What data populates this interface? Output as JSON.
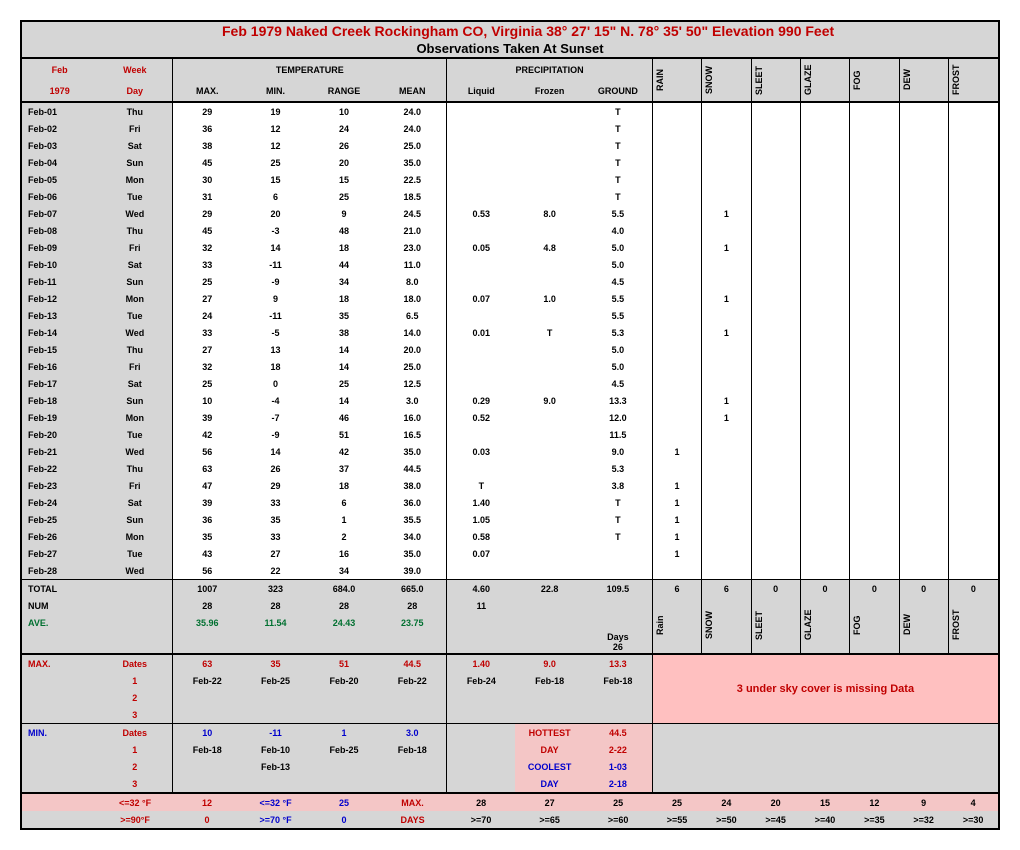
{
  "title": "Feb       1979          Naked Creek Rockingham CO, Virginia   38° 27' 15\" N. 78° 35'  50\" Elevation 990 Feet",
  "subtitle": "Observations  Taken At Sunset",
  "header": {
    "month": "Feb",
    "week": "Week",
    "year": "1979",
    "day": "Day",
    "tempTitle": "TEMPERATURE",
    "precipTitle": "PRECIPITATION",
    "max": "MAX.",
    "min": "MIN.",
    "range": "RANGE",
    "mean": "MEAN",
    "liquid": "Liquid",
    "frozen": "Frozen",
    "ground": "GROUND",
    "cols": [
      "RAIN",
      "SNOW",
      "SLEET",
      "GLAZE",
      "FOG",
      "DEW",
      "FROST"
    ]
  },
  "rows": [
    {
      "d": "Feb-01",
      "w": "Thu",
      "max": "29",
      "min": "19",
      "rng": "10",
      "mean": "24.0",
      "liq": "",
      "frz": "",
      "gnd": "T",
      "r": "",
      "s": "",
      "sl": "",
      "g": "",
      "f": "",
      "de": "",
      "fr": ""
    },
    {
      "d": "Feb-02",
      "w": "Fri",
      "max": "36",
      "min": "12",
      "rng": "24",
      "mean": "24.0",
      "liq": "",
      "frz": "",
      "gnd": "T",
      "r": "",
      "s": "",
      "sl": "",
      "g": "",
      "f": "",
      "de": "",
      "fr": ""
    },
    {
      "d": "Feb-03",
      "w": "Sat",
      "max": "38",
      "min": "12",
      "rng": "26",
      "mean": "25.0",
      "liq": "",
      "frz": "",
      "gnd": "T",
      "r": "",
      "s": "",
      "sl": "",
      "g": "",
      "f": "",
      "de": "",
      "fr": ""
    },
    {
      "d": "Feb-04",
      "w": "Sun",
      "max": "45",
      "min": "25",
      "rng": "20",
      "mean": "35.0",
      "liq": "",
      "frz": "",
      "gnd": "T",
      "r": "",
      "s": "",
      "sl": "",
      "g": "",
      "f": "",
      "de": "",
      "fr": ""
    },
    {
      "d": "Feb-05",
      "w": "Mon",
      "max": "30",
      "min": "15",
      "rng": "15",
      "mean": "22.5",
      "liq": "",
      "frz": "",
      "gnd": "T",
      "r": "",
      "s": "",
      "sl": "",
      "g": "",
      "f": "",
      "de": "",
      "fr": ""
    },
    {
      "d": "Feb-06",
      "w": "Tue",
      "max": "31",
      "min": "6",
      "rng": "25",
      "mean": "18.5",
      "liq": "",
      "frz": "",
      "gnd": "T",
      "r": "",
      "s": "",
      "sl": "",
      "g": "",
      "f": "",
      "de": "",
      "fr": ""
    },
    {
      "d": "Feb-07",
      "w": "Wed",
      "max": "29",
      "min": "20",
      "rng": "9",
      "mean": "24.5",
      "liq": "0.53",
      "frz": "8.0",
      "gnd": "5.5",
      "r": "",
      "s": "1",
      "sl": "",
      "g": "",
      "f": "",
      "de": "",
      "fr": ""
    },
    {
      "d": "Feb-08",
      "w": "Thu",
      "max": "45",
      "min": "-3",
      "rng": "48",
      "mean": "21.0",
      "liq": "",
      "frz": "",
      "gnd": "4.0",
      "r": "",
      "s": "",
      "sl": "",
      "g": "",
      "f": "",
      "de": "",
      "fr": ""
    },
    {
      "d": "Feb-09",
      "w": "Fri",
      "max": "32",
      "min": "14",
      "rng": "18",
      "mean": "23.0",
      "liq": "0.05",
      "frz": "4.8",
      "gnd": "5.0",
      "r": "",
      "s": "1",
      "sl": "",
      "g": "",
      "f": "",
      "de": "",
      "fr": ""
    },
    {
      "d": "Feb-10",
      "w": "Sat",
      "max": "33",
      "min": "-11",
      "rng": "44",
      "mean": "11.0",
      "liq": "",
      "frz": "",
      "gnd": "5.0",
      "r": "",
      "s": "",
      "sl": "",
      "g": "",
      "f": "",
      "de": "",
      "fr": ""
    },
    {
      "d": "Feb-11",
      "w": "Sun",
      "max": "25",
      "min": "-9",
      "rng": "34",
      "mean": "8.0",
      "liq": "",
      "frz": "",
      "gnd": "4.5",
      "r": "",
      "s": "",
      "sl": "",
      "g": "",
      "f": "",
      "de": "",
      "fr": ""
    },
    {
      "d": "Feb-12",
      "w": "Mon",
      "max": "27",
      "min": "9",
      "rng": "18",
      "mean": "18.0",
      "liq": "0.07",
      "frz": "1.0",
      "gnd": "5.5",
      "r": "",
      "s": "1",
      "sl": "",
      "g": "",
      "f": "",
      "de": "",
      "fr": ""
    },
    {
      "d": "Feb-13",
      "w": "Tue",
      "max": "24",
      "min": "-11",
      "rng": "35",
      "mean": "6.5",
      "liq": "",
      "frz": "",
      "gnd": "5.5",
      "r": "",
      "s": "",
      "sl": "",
      "g": "",
      "f": "",
      "de": "",
      "fr": ""
    },
    {
      "d": "Feb-14",
      "w": "Wed",
      "max": "33",
      "min": "-5",
      "rng": "38",
      "mean": "14.0",
      "liq": "0.01",
      "frz": "T",
      "gnd": "5.3",
      "r": "",
      "s": "1",
      "sl": "",
      "g": "",
      "f": "",
      "de": "",
      "fr": ""
    },
    {
      "d": "Feb-15",
      "w": "Thu",
      "max": "27",
      "min": "13",
      "rng": "14",
      "mean": "20.0",
      "liq": "",
      "frz": "",
      "gnd": "5.0",
      "r": "",
      "s": "",
      "sl": "",
      "g": "",
      "f": "",
      "de": "",
      "fr": ""
    },
    {
      "d": "Feb-16",
      "w": "Fri",
      "max": "32",
      "min": "18",
      "rng": "14",
      "mean": "25.0",
      "liq": "",
      "frz": "",
      "gnd": "5.0",
      "r": "",
      "s": "",
      "sl": "",
      "g": "",
      "f": "",
      "de": "",
      "fr": ""
    },
    {
      "d": "Feb-17",
      "w": "Sat",
      "max": "25",
      "min": "0",
      "rng": "25",
      "mean": "12.5",
      "liq": "",
      "frz": "",
      "gnd": "4.5",
      "r": "",
      "s": "",
      "sl": "",
      "g": "",
      "f": "",
      "de": "",
      "fr": ""
    },
    {
      "d": "Feb-18",
      "w": "Sun",
      "max": "10",
      "min": "-4",
      "rng": "14",
      "mean": "3.0",
      "liq": "0.29",
      "frz": "9.0",
      "gnd": "13.3",
      "r": "",
      "s": "1",
      "sl": "",
      "g": "",
      "f": "",
      "de": "",
      "fr": ""
    },
    {
      "d": "Feb-19",
      "w": "Mon",
      "max": "39",
      "min": "-7",
      "rng": "46",
      "mean": "16.0",
      "liq": "0.52",
      "frz": "",
      "gnd": "12.0",
      "r": "",
      "s": "1",
      "sl": "",
      "g": "",
      "f": "",
      "de": "",
      "fr": ""
    },
    {
      "d": "Feb-20",
      "w": "Tue",
      "max": "42",
      "min": "-9",
      "rng": "51",
      "mean": "16.5",
      "liq": "",
      "frz": "",
      "gnd": "11.5",
      "r": "",
      "s": "",
      "sl": "",
      "g": "",
      "f": "",
      "de": "",
      "fr": ""
    },
    {
      "d": "Feb-21",
      "w": "Wed",
      "max": "56",
      "min": "14",
      "rng": "42",
      "mean": "35.0",
      "liq": "0.03",
      "frz": "",
      "gnd": "9.0",
      "r": "1",
      "s": "",
      "sl": "",
      "g": "",
      "f": "",
      "de": "",
      "fr": ""
    },
    {
      "d": "Feb-22",
      "w": "Thu",
      "max": "63",
      "min": "26",
      "rng": "37",
      "mean": "44.5",
      "liq": "",
      "frz": "",
      "gnd": "5.3",
      "r": "",
      "s": "",
      "sl": "",
      "g": "",
      "f": "",
      "de": "",
      "fr": ""
    },
    {
      "d": "Feb-23",
      "w": "Fri",
      "max": "47",
      "min": "29",
      "rng": "18",
      "mean": "38.0",
      "liq": "T",
      "frz": "",
      "gnd": "3.8",
      "r": "1",
      "s": "",
      "sl": "",
      "g": "",
      "f": "",
      "de": "",
      "fr": ""
    },
    {
      "d": "Feb-24",
      "w": "Sat",
      "max": "39",
      "min": "33",
      "rng": "6",
      "mean": "36.0",
      "liq": "1.40",
      "frz": "",
      "gnd": "T",
      "r": "1",
      "s": "",
      "sl": "",
      "g": "",
      "f": "",
      "de": "",
      "fr": ""
    },
    {
      "d": "Feb-25",
      "w": "Sun",
      "max": "36",
      "min": "35",
      "rng": "1",
      "mean": "35.5",
      "liq": "1.05",
      "frz": "",
      "gnd": "T",
      "r": "1",
      "s": "",
      "sl": "",
      "g": "",
      "f": "",
      "de": "",
      "fr": ""
    },
    {
      "d": "Feb-26",
      "w": "Mon",
      "max": "35",
      "min": "33",
      "rng": "2",
      "mean": "34.0",
      "liq": "0.58",
      "frz": "",
      "gnd": "T",
      "r": "1",
      "s": "",
      "sl": "",
      "g": "",
      "f": "",
      "de": "",
      "fr": ""
    },
    {
      "d": "Feb-27",
      "w": "Tue",
      "max": "43",
      "min": "27",
      "rng": "16",
      "mean": "35.0",
      "liq": "0.07",
      "frz": "",
      "gnd": "",
      "r": "1",
      "s": "",
      "sl": "",
      "g": "",
      "f": "",
      "de": "",
      "fr": ""
    },
    {
      "d": "Feb-28",
      "w": "Wed",
      "max": "56",
      "min": "22",
      "rng": "34",
      "mean": "39.0",
      "liq": "",
      "frz": "",
      "gnd": "",
      "r": "",
      "s": "",
      "sl": "",
      "g": "",
      "f": "",
      "de": "",
      "fr": ""
    }
  ],
  "totals": {
    "label": "TOTAL",
    "max": "1007",
    "min": "323",
    "rng": "684.0",
    "mean": "665.0",
    "liq": "4.60",
    "frz": "22.8",
    "gnd": "109.5",
    "r": "6",
    "s": "6",
    "sl": "0",
    "g": "0",
    "f": "0",
    "de": "0",
    "fr": "0"
  },
  "num": {
    "label": "NUM",
    "max": "28",
    "min": "28",
    "rng": "28",
    "mean": "28",
    "liq": "11"
  },
  "ave": {
    "label": "AVE.",
    "max": "35.96",
    "min": "11.54",
    "rng": "24.43",
    "mean": "23.75"
  },
  "daysLabel": "Days",
  "daysVal": "26",
  "footerCols": [
    "Rain",
    "SNOW",
    "SLEET",
    "GLAZE",
    "FOG",
    "DEW",
    "FROST"
  ],
  "maxRow": {
    "label": "MAX.",
    "dates": "Dates",
    "max": "63",
    "min": "35",
    "rng": "51",
    "mean": "44.5",
    "liq": "1.40",
    "frz": "9.0",
    "gnd": "13.3"
  },
  "maxDates": {
    "1": "1",
    "d1": [
      "Feb-22",
      "Feb-25",
      "Feb-20",
      "Feb-22",
      "Feb-24",
      "Feb-18",
      "Feb-18"
    ],
    "2": "2",
    "3": "3"
  },
  "skyText": "3 under sky cover is missing Data",
  "minRow": {
    "label": "MIN.",
    "dates": "Dates",
    "max": "10",
    "min": "-11",
    "rng": "1",
    "mean": "3.0"
  },
  "minDates": {
    "1": "1",
    "d1": [
      "Feb-18",
      "Feb-10",
      "Feb-25",
      "Feb-18"
    ],
    "2": "2",
    "d2": "Feb-13",
    "3": "3"
  },
  "hottest": {
    "label": "HOTTEST",
    "val": "44.5",
    "day": "DAY",
    "dv": "2-22"
  },
  "coolest": {
    "label": "COOLEST",
    "val": "1-03",
    "day": "DAY",
    "dv": "2-18"
  },
  "row32": {
    "l1": "<=32 °F",
    "v1": "12",
    "l2": "<=32 °F",
    "v2": "25",
    "max": "MAX.",
    "vals": [
      "28",
      "27",
      "25",
      "25",
      "24",
      "20",
      "15",
      "12",
      "9",
      "4"
    ]
  },
  "row90": {
    "l1": ">=90°F",
    "v1": "0",
    "l2": ">=70 °F",
    "v2": "0",
    "days": "DAYS",
    "vals": [
      ">=70",
      ">=65",
      ">=60",
      ">=55",
      ">=50",
      ">=45",
      ">=40",
      ">=35",
      ">=32",
      ">=30"
    ]
  }
}
